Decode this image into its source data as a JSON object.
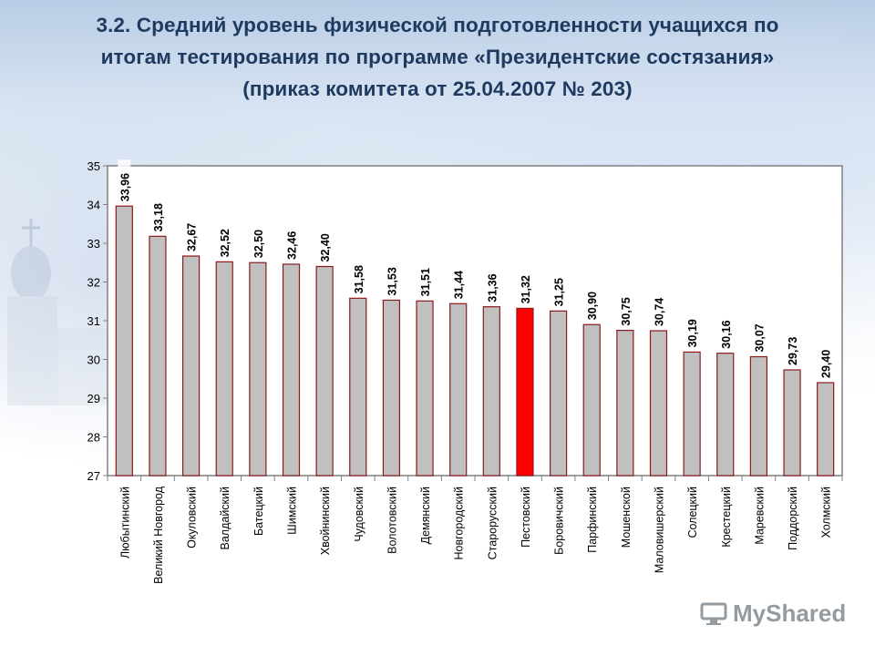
{
  "title_lines": [
    "3.2. Средний уровень физической подготовленности учащихся по",
    "итогам тестирования по программе «Президентские состязания»",
    "(приказ комитета от 25.04.2007 № 203)"
  ],
  "logo": {
    "text": "MyShared",
    "icon": "monitor-logo-icon"
  },
  "colors": {
    "bar": "#c0c0c0",
    "bar_highlight": "#ff0000",
    "bar_border": "#8b1a1a",
    "frame": "#808080"
  },
  "chart_data": {
    "type": "bar",
    "title": "",
    "xlabel": "",
    "ylabel": "",
    "ylim": [
      27,
      35
    ],
    "yticks": [
      27,
      28,
      29,
      30,
      31,
      32,
      33,
      34,
      35
    ],
    "grid": false,
    "legend": "none",
    "highlight_category": "Пестовский",
    "categories": [
      "Любытинский",
      "Великий Новгород",
      "Окуловский",
      "Валдайский",
      "Батецкий",
      "Шимский",
      "Хвойнинский",
      "Чудовский",
      "Волотовский",
      "Демянский",
      "Новгородский",
      "Старорусский",
      "Пестовский",
      "Боровичский",
      "Парфинский",
      "Мошенской",
      "Маловишерский",
      "Солецкий",
      "Крестецкий",
      "Маревский",
      "Поддорский",
      "Холмский"
    ],
    "values": [
      33.96,
      33.18,
      32.67,
      32.52,
      32.5,
      32.46,
      32.4,
      31.58,
      31.53,
      31.51,
      31.44,
      31.36,
      31.32,
      31.25,
      30.9,
      30.75,
      30.74,
      30.19,
      30.16,
      30.07,
      29.73,
      29.4
    ],
    "value_labels": [
      "33,96",
      "33,18",
      "32,67",
      "32,52",
      "32,50",
      "32,46",
      "32,40",
      "31,58",
      "31,53",
      "31,51",
      "31,44",
      "31,36",
      "31,32",
      "31,25",
      "30,90",
      "30,75",
      "30,74",
      "30,19",
      "30,16",
      "30,07",
      "29,73",
      "29,40"
    ]
  }
}
